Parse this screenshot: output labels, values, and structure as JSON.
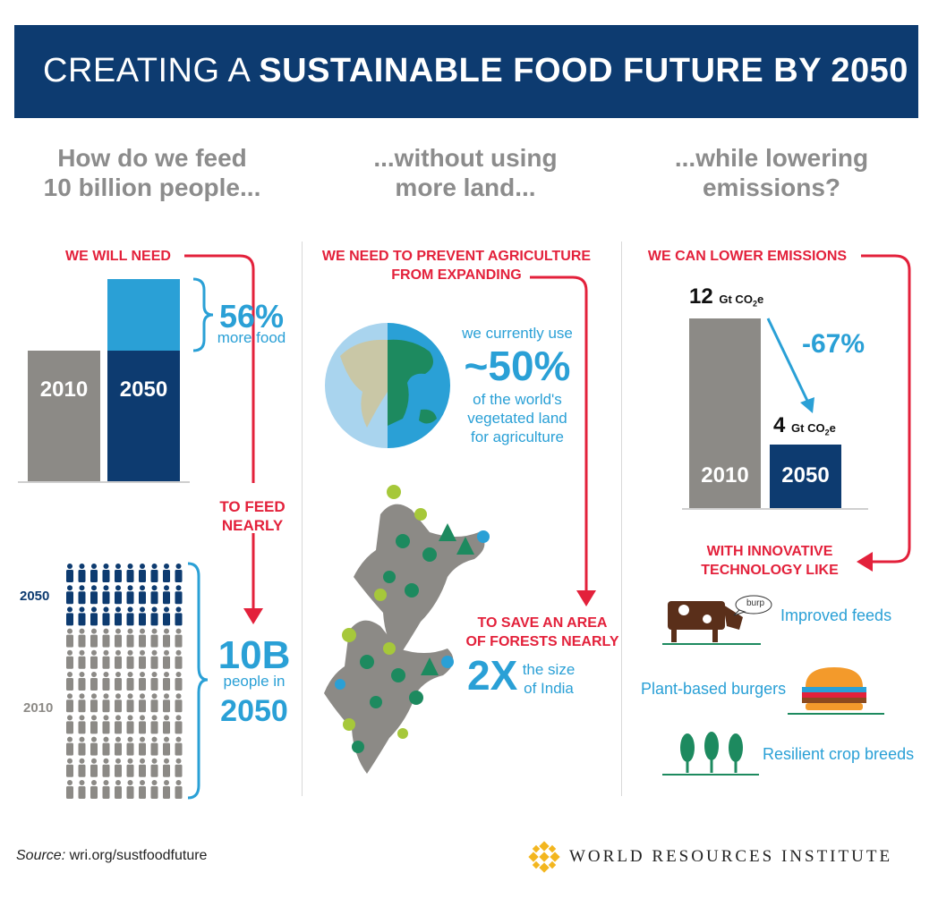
{
  "header": {
    "title_light": "CREATING A ",
    "title_bold": "SUSTAINABLE FOOD FUTURE BY 2050"
  },
  "questions": [
    {
      "line1": "How do we feed",
      "line2": "10 billion people..."
    },
    {
      "line1": "...without using",
      "line2": "more land..."
    },
    {
      "line1": "...while lowering",
      "line2": "emissions?"
    }
  ],
  "col1": {
    "we_will_need": "WE WILL NEED",
    "bar_2010": "2010",
    "bar_2050": "2050",
    "pct": "56%",
    "pct_label": "more food",
    "to_feed_1": "TO FEED",
    "to_feed_2": "NEARLY",
    "people_2050": "2050",
    "people_2010": "2010",
    "big": "10B",
    "big_l1": "people in",
    "big_l2": "2050",
    "food_increase_pct": 56
  },
  "col2": {
    "prevent_1": "WE NEED TO PREVENT AGRICULTURE",
    "prevent_2": "FROM EXPANDING",
    "use_1": "we currently use",
    "use_pct": "~50%",
    "use_2": "of the world's",
    "use_3": "vegetated land",
    "use_4": "for agriculture",
    "save_1": "TO SAVE AN AREA",
    "save_2": "OF FORESTS NEARLY",
    "mult": "2X",
    "mult_1": "the size",
    "mult_2": "of India"
  },
  "col3": {
    "lower": "WE CAN LOWER EMISSIONS",
    "v2010": "12",
    "v2050": "4",
    "unit": "Gt CO",
    "unit_sub": "2",
    "unit_e": "e",
    "pct": "-67%",
    "bar_2010": "2010",
    "bar_2050": "2050",
    "innov_1": "WITH INNOVATIVE",
    "innov_2": "TECHNOLOGY LIKE",
    "burp": "burp",
    "tech1": "Improved feeds",
    "tech2": "Plant-based burgers",
    "tech3": "Resilient crop breeds"
  },
  "footer": {
    "source_label": "Source:",
    "source_url": "wri.org/sustfoodfuture",
    "org": "WORLD RESOURCES INSTITUTE"
  },
  "colors": {
    "navy": "#0d3b70",
    "red": "#e3213b",
    "blue": "#2aa0d6",
    "gray": "#8c8a86",
    "green": "#1d8a5f"
  }
}
